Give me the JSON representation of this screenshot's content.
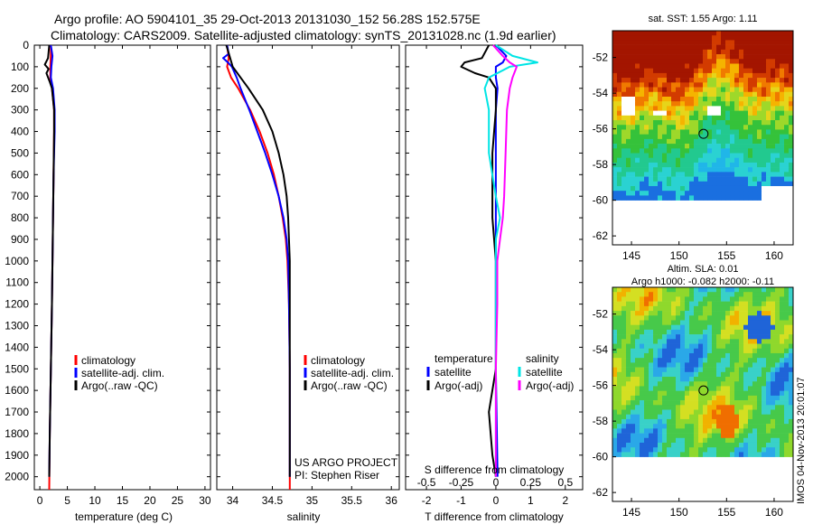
{
  "header": {
    "line1": "Argo profile: AO 5904101_35 29-Oct-2013 20131030_152 56.28S 152.575E",
    "line2": "Climatology: CARS2009. Satellite-adjusted climatology: synTS_20131028.nc (1.9d earlier)"
  },
  "colors": {
    "climatology": "#ff0000",
    "satellite": "#0000ff",
    "argo": "#000000",
    "satellite_salinity": "#00e5e5",
    "argo_salinity": "#ff00ff"
  },
  "chart_data": [
    {
      "type": "line",
      "xlabel": "temperature (deg C)",
      "ylabel": "",
      "xlim": [
        -1,
        31
      ],
      "ylim": [
        2060,
        0
      ],
      "xticks": [
        "0",
        "5",
        "10",
        "15",
        "20",
        "25",
        "30"
      ],
      "yticks": [
        "0",
        "100",
        "200",
        "300",
        "400",
        "500",
        "600",
        "700",
        "800",
        "900",
        "1000",
        "1100",
        "1200",
        "1300",
        "1400",
        "1500",
        "1600",
        "1700",
        "1800",
        "1900",
        "2000"
      ],
      "legend": [
        "climatology",
        "satellite-adj. clim.",
        "Argo(..raw -QC)"
      ],
      "legend_placement": "lower-center",
      "series": [
        {
          "name": "climatology",
          "color": "#ff0000",
          "depth": [
            0,
            50,
            100,
            150,
            200,
            300,
            400,
            600,
            800,
            1000,
            1200,
            1500,
            1800,
            2060
          ],
          "values": [
            2.0,
            2.0,
            1.9,
            1.9,
            2.2,
            2.6,
            2.6,
            2.5,
            2.4,
            2.3,
            2.2,
            2.0,
            1.8,
            1.7
          ]
        },
        {
          "name": "satellite-adj. clim.",
          "color": "#0000ff",
          "depth": [
            0,
            50,
            100,
            150,
            200,
            300,
            400,
            600,
            800,
            1000,
            1200,
            1500,
            1800,
            2000
          ],
          "values": [
            2.0,
            2.3,
            2.1,
            2.0,
            2.4,
            2.7,
            2.7,
            2.5,
            2.4,
            2.3,
            2.2,
            2.0,
            1.8,
            1.7
          ]
        },
        {
          "name": "Argo(..raw -QC)",
          "color": "#000000",
          "depth": [
            0,
            60,
            90,
            110,
            130,
            170,
            200,
            300,
            400,
            600,
            800,
            1000,
            1200,
            1500,
            1800,
            2000
          ],
          "values": [
            1.7,
            1.5,
            0.9,
            1.6,
            1.2,
            1.8,
            2.2,
            2.6,
            2.6,
            2.5,
            2.4,
            2.3,
            2.2,
            2.0,
            1.8,
            1.7
          ]
        }
      ]
    },
    {
      "type": "line",
      "xlabel": "salinity",
      "ylabel": "",
      "xlim": [
        33.8,
        36.1
      ],
      "ylim": [
        2060,
        0
      ],
      "xticks": [
        "34",
        "34.5",
        "35",
        "35.5",
        "36"
      ],
      "legend": [
        "climatology",
        "satellite-adj. clim.",
        "Argo(..raw -QC)"
      ],
      "legend_placement": "lower-center",
      "annotation": [
        "US ARGO PROJECT",
        "PI: Stephen Riser"
      ],
      "series": [
        {
          "name": "climatology",
          "color": "#ff0000",
          "depth": [
            0,
            60,
            100,
            150,
            200,
            300,
            400,
            500,
            600,
            700,
            800,
            900,
            1000,
            1200,
            1500,
            1800,
            2060
          ],
          "values": [
            33.93,
            33.95,
            33.93,
            33.98,
            34.07,
            34.22,
            34.34,
            34.44,
            34.52,
            34.58,
            34.63,
            34.67,
            34.69,
            34.71,
            34.72,
            34.72,
            34.72
          ]
        },
        {
          "name": "satellite-adj. clim.",
          "color": "#0000ff",
          "depth": [
            0,
            40,
            60,
            80,
            100,
            150,
            200,
            300,
            400,
            500,
            600,
            700,
            800,
            900,
            1000,
            1200,
            1500,
            1800,
            2000
          ],
          "values": [
            33.93,
            33.95,
            33.88,
            33.94,
            33.99,
            34.05,
            34.1,
            34.21,
            34.31,
            34.41,
            34.5,
            34.58,
            34.64,
            34.68,
            34.7,
            34.71,
            34.72,
            34.72,
            34.72
          ]
        },
        {
          "name": "Argo(..raw -QC)",
          "color": "#000000",
          "depth": [
            0,
            50,
            100,
            150,
            200,
            300,
            400,
            500,
            600,
            700,
            800,
            900,
            1000,
            1200,
            1500,
            1800,
            2000
          ],
          "values": [
            33.92,
            33.96,
            34.0,
            34.1,
            34.2,
            34.38,
            34.5,
            34.58,
            34.64,
            34.68,
            34.7,
            34.71,
            34.72,
            34.72,
            34.72,
            34.72,
            34.72
          ]
        }
      ]
    },
    {
      "type": "line",
      "xlabel": "T difference from climatology",
      "xlabel2": "S difference from climatology",
      "xlim": [
        -2.6,
        2.5
      ],
      "xlim_S": [
        -0.65,
        0.625
      ],
      "ylim": [
        2060,
        0
      ],
      "xticks": [
        "-2",
        "-1",
        "0",
        "1",
        "2"
      ],
      "xticks_S": [
        "-0.5",
        "-0.25",
        "0",
        "0.25",
        "0.5"
      ],
      "legend_titles": [
        "temperature",
        "salinity"
      ],
      "legend": [
        "satellite",
        "Argo(-adj)",
        "satellite",
        "Argo(-adj)"
      ],
      "legend_placement": "lower-center",
      "series": [
        {
          "name": "satellite",
          "color": "#0000ff",
          "depth": [
            0,
            50,
            80,
            100,
            150,
            200,
            300,
            500,
            800,
            1000,
            1500,
            2000
          ],
          "values": [
            0.0,
            0.3,
            0.2,
            0.0,
            0.0,
            0.05,
            0.0,
            0.0,
            0.0,
            0.0,
            0.0,
            0.05
          ]
        },
        {
          "name": "Argo(-adj)",
          "color": "#000000",
          "depth": [
            0,
            60,
            80,
            100,
            130,
            150,
            200,
            300,
            500,
            800,
            1000,
            1500,
            1700,
            1900,
            2000
          ],
          "values": [
            -0.2,
            -0.4,
            -0.9,
            -1.0,
            -0.6,
            -0.2,
            0.0,
            0.0,
            -0.1,
            -0.1,
            0.0,
            0.0,
            -0.2,
            -0.1,
            0.0
          ]
        },
        {
          "name": "satellite",
          "color": "#00e5e5",
          "depth": [
            0,
            50,
            80,
            100,
            150,
            200,
            300,
            500,
            700,
            800,
            900,
            1000,
            1200,
            1500,
            2000
          ],
          "values": [
            0.0,
            0.12,
            0.3,
            0.1,
            -0.05,
            -0.08,
            -0.05,
            -0.05,
            0.0,
            0.03,
            0.0,
            0.0,
            0.0,
            0.0,
            0.0
          ]
        },
        {
          "name": "Argo(-adj)",
          "color": "#ff00ff",
          "depth": [
            0,
            50,
            80,
            100,
            150,
            200,
            300,
            500,
            700,
            800,
            900,
            1000,
            1200,
            1500,
            2000
          ],
          "values": [
            -0.02,
            0.05,
            0.1,
            0.15,
            0.12,
            0.1,
            0.08,
            0.07,
            0.06,
            0.05,
            0.03,
            0.01,
            0.01,
            0.0,
            0.0
          ]
        }
      ]
    },
    {
      "type": "heatmap",
      "title": "sat. SST: 1.55 Argo: 1.11",
      "xlim": [
        143,
        162
      ],
      "ylim": [
        -62.5,
        -50.5
      ],
      "xticks": [
        "145",
        "150",
        "155",
        "160"
      ],
      "yticks": [
        "-52",
        "-54",
        "-56",
        "-58",
        "-60",
        "-62"
      ],
      "marker": {
        "lon": 152.575,
        "lat": -56.28
      }
    },
    {
      "type": "heatmap",
      "title": "Altim. SLA: 0.01",
      "subtitle": "Argo h1000: -0.082 h2000: -0.11",
      "xlim": [
        143,
        162
      ],
      "ylim": [
        -62.5,
        -50.5
      ],
      "xticks": [
        "145",
        "150",
        "155",
        "160"
      ],
      "yticks": [
        "-52",
        "-54",
        "-56",
        "-58",
        "-60",
        "-62"
      ],
      "marker": {
        "lon": 152.575,
        "lat": -56.28
      }
    }
  ],
  "footer": {
    "stamp": "IMOS 04-Nov-2013 20:01:07"
  }
}
